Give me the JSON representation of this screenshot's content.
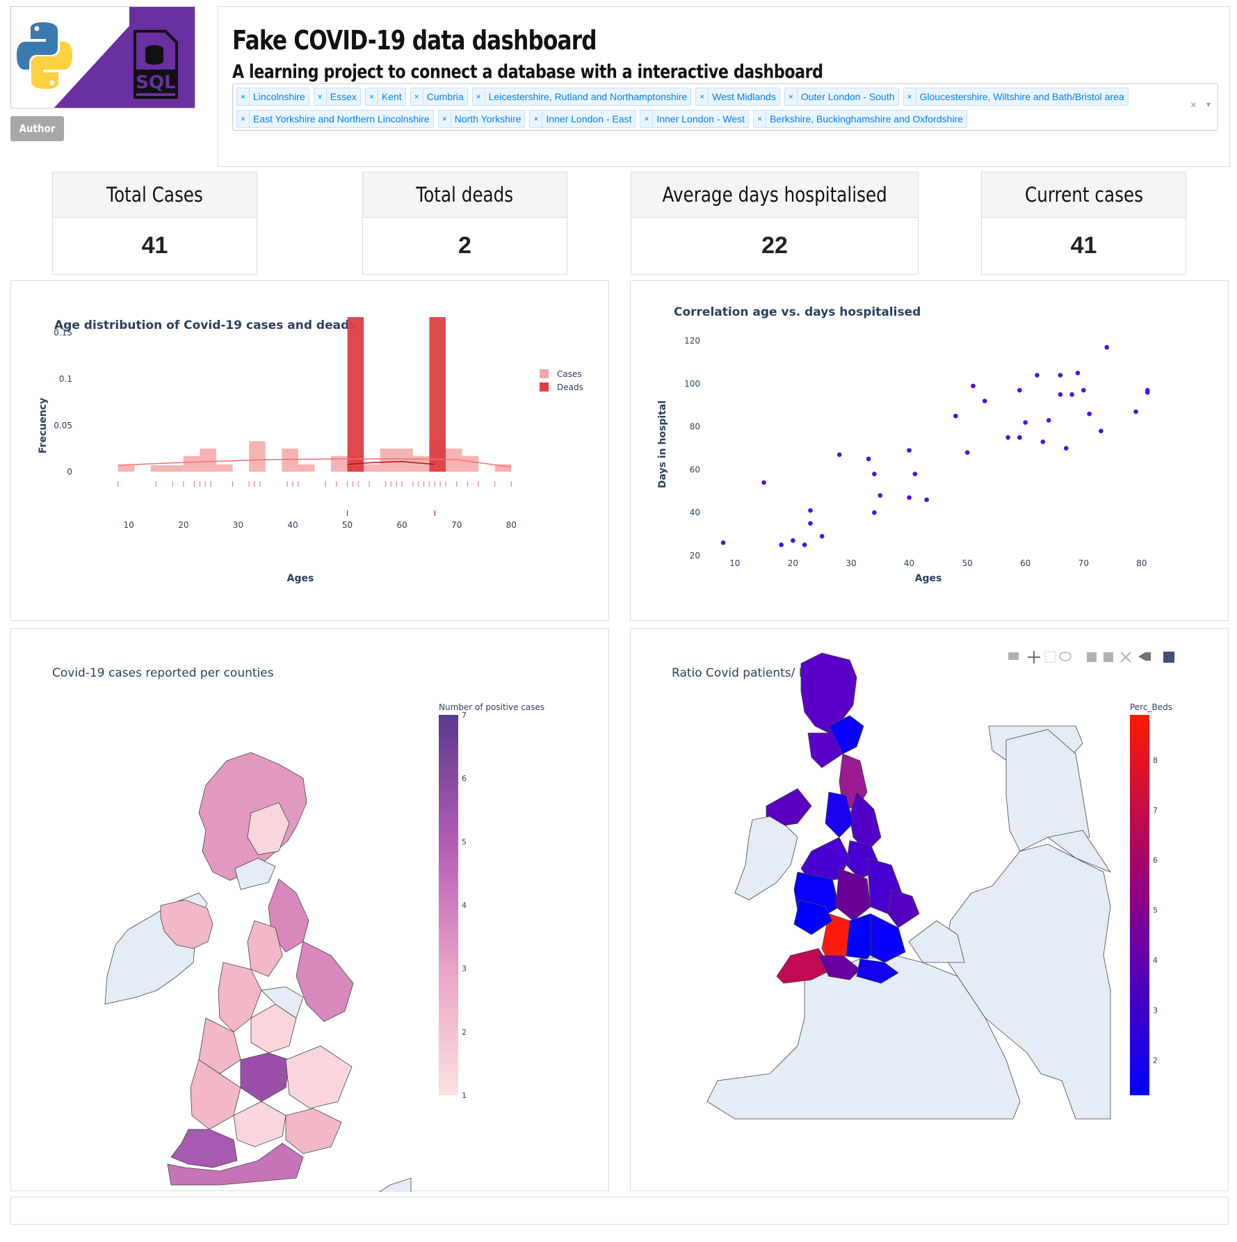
{
  "header": {
    "title": "Fake COVID-19 data dashboard",
    "subtitle": "A learning project to connect a database with a interactive dashboard",
    "author_button": "Author",
    "logo": {
      "python_logo": "python-logo",
      "sql_logo_text": "SQL"
    }
  },
  "region_filter": {
    "selected": [
      "Lincolnshire",
      "Essex",
      "Kent",
      "Cumbria",
      "Leicestershire, Rutland and Northamptonshire",
      "West Midlands",
      "Outer London - South",
      "Gloucestershire, Wiltshire and Bath/Bristol area",
      "East Yorkshire and Northern Lincolnshire",
      "North Yorkshire",
      "Inner London - East",
      "Inner London - West",
      "Berkshire, Buckinghamshire and Oxfordshire"
    ],
    "remove_glyph": "×",
    "clear_glyph": "×",
    "arrow_glyph": "▾"
  },
  "kpis": [
    {
      "label": "Total Cases",
      "value": "41"
    },
    {
      "label": "Total deads",
      "value": "2"
    },
    {
      "label": "Average days hospitalised",
      "value": "22"
    },
    {
      "label": "Current cases",
      "value": "41"
    }
  ],
  "age_chart": {
    "chart_data": {
      "type": "bar",
      "title": "Age distribution of Covid-19 cases and deads",
      "xlabel": "Ages",
      "ylabel": "Frecuency",
      "xlim": [
        5,
        82
      ],
      "ylim": [
        -0.005,
        0.17
      ],
      "x_ticks": [
        10,
        20,
        30,
        40,
        50,
        60,
        70,
        80
      ],
      "y_ticks": [
        0,
        0.05,
        0.1,
        0.15
      ],
      "y_tick_labels": [
        "0",
        "0.05",
        "0.1",
        "0.15"
      ],
      "legend_position": "top-right",
      "series": [
        {
          "name": "Cases",
          "color": "#f4a6a6",
          "bins": [
            {
              "x0": 8,
              "x1": 11,
              "y": 0.007
            },
            {
              "x0": 11,
              "x1": 14,
              "y": 0.0
            },
            {
              "x0": 14,
              "x1": 17,
              "y": 0.007
            },
            {
              "x0": 17,
              "x1": 20,
              "y": 0.007
            },
            {
              "x0": 20,
              "x1": 23,
              "y": 0.017
            },
            {
              "x0": 23,
              "x1": 26,
              "y": 0.025
            },
            {
              "x0": 26,
              "x1": 29,
              "y": 0.008
            },
            {
              "x0": 29,
              "x1": 32,
              "y": 0.0
            },
            {
              "x0": 32,
              "x1": 35,
              "y": 0.033
            },
            {
              "x0": 35,
              "x1": 38,
              "y": 0.0
            },
            {
              "x0": 38,
              "x1": 41,
              "y": 0.025
            },
            {
              "x0": 41,
              "x1": 44,
              "y": 0.008
            },
            {
              "x0": 44,
              "x1": 47,
              "y": 0.0
            },
            {
              "x0": 47,
              "x1": 50,
              "y": 0.017
            },
            {
              "x0": 50,
              "x1": 53,
              "y": 0.017
            },
            {
              "x0": 53,
              "x1": 56,
              "y": 0.008
            },
            {
              "x0": 56,
              "x1": 59,
              "y": 0.025
            },
            {
              "x0": 59,
              "x1": 62,
              "y": 0.025
            },
            {
              "x0": 62,
              "x1": 65,
              "y": 0.017
            },
            {
              "x0": 65,
              "x1": 68,
              "y": 0.033
            },
            {
              "x0": 68,
              "x1": 71,
              "y": 0.025
            },
            {
              "x0": 71,
              "x1": 74,
              "y": 0.017
            },
            {
              "x0": 74,
              "x1": 77,
              "y": 0.0
            },
            {
              "x0": 77,
              "x1": 80,
              "y": 0.008
            }
          ],
          "kde": [
            [
              8,
              0.007
            ],
            [
              20,
              0.01
            ],
            [
              35,
              0.013
            ],
            [
              50,
              0.014
            ],
            [
              60,
              0.014
            ],
            [
              70,
              0.013
            ],
            [
              80,
              0.005
            ]
          ],
          "rug": [
            8,
            15,
            18,
            20,
            22,
            23,
            24,
            25,
            29,
            32,
            33,
            34,
            39,
            40,
            41,
            46,
            48,
            50,
            51,
            52,
            54,
            57,
            58,
            59,
            60,
            62,
            63,
            64,
            65,
            66,
            67,
            68,
            70,
            72,
            74,
            77,
            80
          ]
        },
        {
          "name": "Deads",
          "color": "#dc3f44",
          "bins": [
            {
              "x0": 50,
              "x1": 53,
              "y": 0.167
            },
            {
              "x0": 65,
              "x1": 68,
              "y": 0.167
            }
          ],
          "kde": [
            [
              50,
              0.008
            ],
            [
              55,
              0.01
            ],
            [
              60,
              0.011
            ],
            [
              66,
              0.008
            ]
          ],
          "rug": [
            50,
            66
          ]
        }
      ]
    }
  },
  "scatter_chart": {
    "chart_data": {
      "type": "scatter",
      "title": "Correlation age vs. days hospitalised",
      "xlabel": "Ages",
      "ylabel": "Days in hospital",
      "xlim": [
        5,
        83
      ],
      "ylim": [
        19,
        122
      ],
      "x_ticks": [
        10,
        20,
        30,
        40,
        50,
        60,
        70,
        80
      ],
      "y_ticks": [
        20,
        40,
        60,
        80,
        100,
        120
      ],
      "point_color": "#4a10e8",
      "points": [
        [
          8,
          26
        ],
        [
          15,
          54
        ],
        [
          18,
          25
        ],
        [
          20,
          27
        ],
        [
          22,
          25
        ],
        [
          23,
          41
        ],
        [
          23,
          35
        ],
        [
          25,
          29
        ],
        [
          28,
          67
        ],
        [
          33,
          65
        ],
        [
          34,
          58
        ],
        [
          34,
          40
        ],
        [
          35,
          48
        ],
        [
          40,
          69
        ],
        [
          40,
          47
        ],
        [
          41,
          58
        ],
        [
          43,
          46
        ],
        [
          48,
          85
        ],
        [
          50,
          68
        ],
        [
          51,
          99
        ],
        [
          53,
          92
        ],
        [
          57,
          75
        ],
        [
          59,
          75
        ],
        [
          59,
          97
        ],
        [
          60,
          82
        ],
        [
          62,
          104
        ],
        [
          63,
          73
        ],
        [
          64,
          83
        ],
        [
          66,
          104
        ],
        [
          66,
          95
        ],
        [
          67,
          70
        ],
        [
          68,
          95
        ],
        [
          69,
          105
        ],
        [
          70,
          97
        ],
        [
          71,
          86
        ],
        [
          73,
          78
        ],
        [
          74,
          117
        ],
        [
          79,
          87
        ],
        [
          81,
          96
        ],
        [
          81,
          97
        ]
      ]
    }
  },
  "map_cases": {
    "title": "Covid-19 cases reported per counties",
    "colorbar": {
      "title": "Number of positive cases",
      "min": 1,
      "max": 7,
      "ticks": [
        "1",
        "2",
        "3",
        "4",
        "5",
        "6",
        "7"
      ]
    }
  },
  "map_beds": {
    "title": "Ratio Covid patients/ ITU beds",
    "colorbar": {
      "title": "Perc_Beds",
      "min": 1.3,
      "max": 8.9,
      "ticks": [
        "2",
        "3",
        "4",
        "5",
        "6",
        "7",
        "8"
      ]
    },
    "modebar": [
      "camera-icon",
      "pan-icon",
      "box-select-icon",
      "lasso-icon",
      "zoom-in-icon",
      "zoom-out-icon",
      "autoscale-icon",
      "reset-icon",
      "plotly-logo-icon"
    ]
  }
}
